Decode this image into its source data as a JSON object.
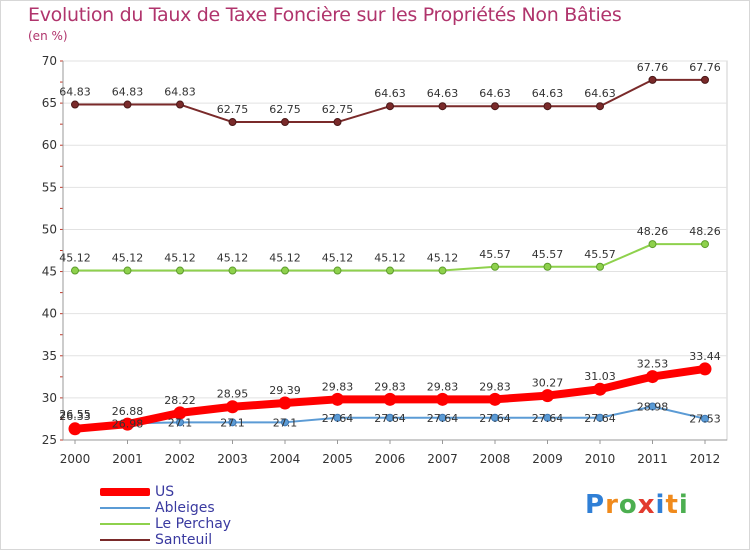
{
  "title": "Evolution du Taux de Taxe Foncière sur les Propriétés Non Bâties",
  "subtitle": "(en %)",
  "logo": "Proxiti",
  "colors": {
    "title": "#b0346c",
    "US": "#ff0000",
    "Ableiges": "#5b9bd5",
    "Le Perchay": "#8ed14c",
    "Santeuil": "#7a2a2a"
  },
  "chart_data": {
    "type": "line",
    "title": "Evolution du Taux de Taxe Foncière sur les Propriétés Non Bâties",
    "ylabel": "(en %)",
    "ylim": [
      25,
      70
    ],
    "yticks": [
      25,
      30,
      35,
      40,
      45,
      50,
      55,
      60,
      65,
      70
    ],
    "x": [
      "2000",
      "2001",
      "2002",
      "2003",
      "2004",
      "2005",
      "2006",
      "2007",
      "2008",
      "2009",
      "2010",
      "2011",
      "2012"
    ],
    "grid": "horizontal",
    "legend": "bottom-left",
    "series": [
      {
        "name": "US",
        "values": [
          26.33,
          26.88,
          28.22,
          28.95,
          29.39,
          29.83,
          29.83,
          29.83,
          29.83,
          30.27,
          31.03,
          32.53,
          33.44
        ],
        "labels": [
          "26.33",
          "26.88",
          "28.22",
          "28.95",
          "29.39",
          "29.83",
          "29.83",
          "29.83",
          "29.83",
          "30.27",
          "31.03",
          "32.53",
          "33.44"
        ]
      },
      {
        "name": "Ableiges",
        "values": [
          26.55,
          26.98,
          27.1,
          27.1,
          27.1,
          27.64,
          27.64,
          27.64,
          27.64,
          27.64,
          27.64,
          28.98,
          27.53
        ],
        "labels": [
          "26.55",
          "26.98",
          "27.1",
          "27.1",
          "27.1",
          "27.64",
          "27.64",
          "27.64",
          "27.64",
          "27.64",
          "27.64",
          "28.98",
          "27.53"
        ]
      },
      {
        "name": "Le Perchay",
        "values": [
          45.12,
          45.12,
          45.12,
          45.12,
          45.12,
          45.12,
          45.12,
          45.12,
          45.57,
          45.57,
          45.57,
          48.26,
          48.26
        ],
        "labels": [
          "45.12",
          "45.12",
          "45.12",
          "45.12",
          "45.12",
          "45.12",
          "45.12",
          "45.12",
          "45.57",
          "45.57",
          "45.57",
          "48.26",
          "48.26"
        ]
      },
      {
        "name": "Santeuil",
        "values": [
          64.83,
          64.83,
          64.83,
          62.75,
          62.75,
          62.75,
          64.63,
          64.63,
          64.63,
          64.63,
          64.63,
          67.76,
          67.76
        ],
        "labels": [
          "64.83",
          "64.83",
          "64.83",
          "62.75",
          "62.75",
          "62.75",
          "64.63",
          "64.63",
          "64.63",
          "64.63",
          "64.63",
          "67.76",
          "67.76"
        ]
      }
    ]
  }
}
